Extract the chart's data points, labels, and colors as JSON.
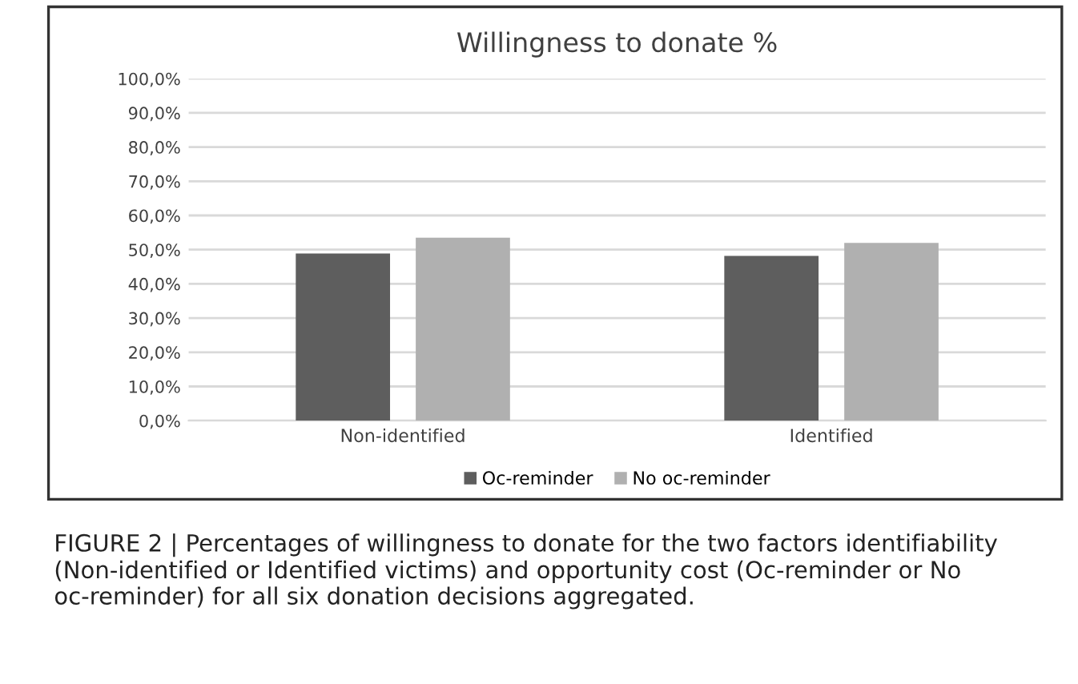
{
  "chart_data": {
    "type": "bar",
    "title": "Willingness to donate %",
    "categories": [
      "Non-identified",
      "Identified"
    ],
    "series": [
      {
        "name": "Oc-reminder",
        "color": "#5e5e5e",
        "values": [
          48.9,
          48.2
        ]
      },
      {
        "name": "No oc-reminder",
        "color": "#b0b0b0",
        "values": [
          53.5,
          52.0
        ]
      }
    ],
    "ylim": [
      0,
      100
    ],
    "yticks": [
      {
        "value": 0,
        "label": "0,0%"
      },
      {
        "value": 10,
        "label": "10,0%"
      },
      {
        "value": 20,
        "label": "20,0%"
      },
      {
        "value": 30,
        "label": "30,0%"
      },
      {
        "value": 40,
        "label": "40,0%"
      },
      {
        "value": 50,
        "label": "50,0%"
      },
      {
        "value": 60,
        "label": "60,0%"
      },
      {
        "value": 70,
        "label": "70,0%"
      },
      {
        "value": 80,
        "label": "80,0%"
      },
      {
        "value": 90,
        "label": "90,0%"
      },
      {
        "value": 100,
        "label": "100,0%"
      }
    ],
    "grid": "y",
    "legend": "bottom",
    "annotations": [
      "FIGURE 2 | Percentages of willingness to donate for the two factors identifiability (Non-identified or Identified victims) and opportunity cost (Oc-reminder or No oc-reminder) for all six donation decisions aggregated."
    ]
  }
}
